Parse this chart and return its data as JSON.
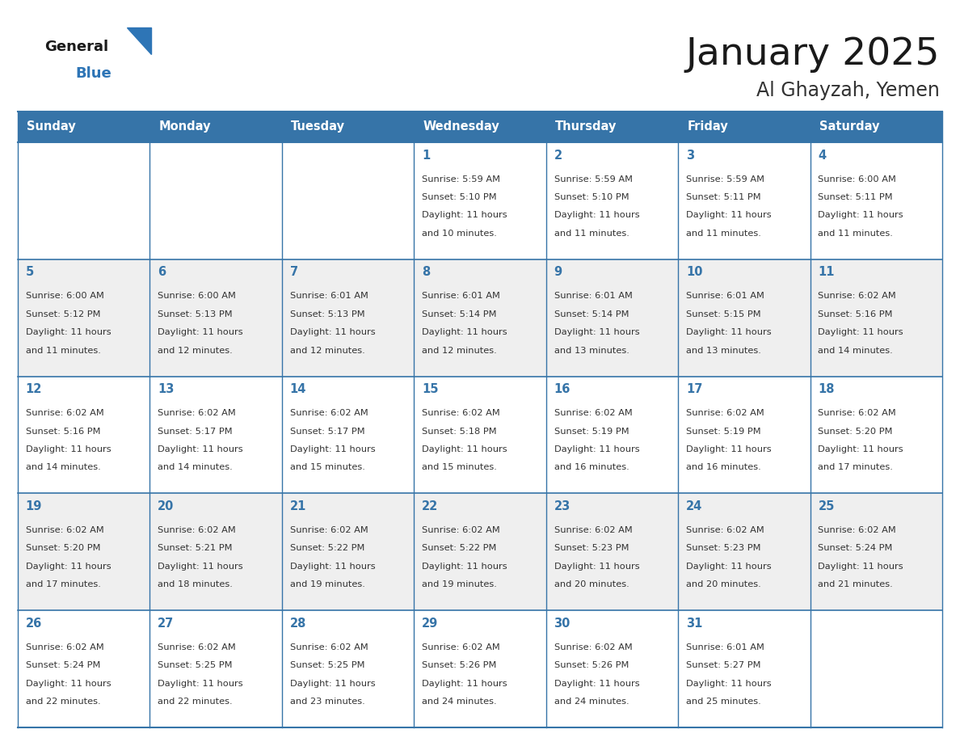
{
  "title": "January 2025",
  "subtitle": "Al Ghayzah, Yemen",
  "days_of_week": [
    "Sunday",
    "Monday",
    "Tuesday",
    "Wednesday",
    "Thursday",
    "Friday",
    "Saturday"
  ],
  "header_bg": "#3674a8",
  "header_text": "#FFFFFF",
  "cell_bg_even": "#FFFFFF",
  "cell_bg_odd": "#EFEFEF",
  "border_color": "#3674a8",
  "day_num_color": "#3674a8",
  "cell_text_color": "#333333",
  "title_color": "#1a1a1a",
  "subtitle_color": "#333333",
  "logo_general_color": "#1a1a1a",
  "logo_blue_color": "#2E75B6",
  "fig_width": 11.88,
  "fig_height": 9.18,
  "calendar_data": [
    [
      {
        "day": null,
        "sunrise": null,
        "sunset": null,
        "daylight_hours": null,
        "daylight_minutes": null
      },
      {
        "day": null,
        "sunrise": null,
        "sunset": null,
        "daylight_hours": null,
        "daylight_minutes": null
      },
      {
        "day": null,
        "sunrise": null,
        "sunset": null,
        "daylight_hours": null,
        "daylight_minutes": null
      },
      {
        "day": 1,
        "sunrise": "5:59 AM",
        "sunset": "5:10 PM",
        "daylight_hours": 11,
        "daylight_minutes": 10
      },
      {
        "day": 2,
        "sunrise": "5:59 AM",
        "sunset": "5:10 PM",
        "daylight_hours": 11,
        "daylight_minutes": 11
      },
      {
        "day": 3,
        "sunrise": "5:59 AM",
        "sunset": "5:11 PM",
        "daylight_hours": 11,
        "daylight_minutes": 11
      },
      {
        "day": 4,
        "sunrise": "6:00 AM",
        "sunset": "5:11 PM",
        "daylight_hours": 11,
        "daylight_minutes": 11
      }
    ],
    [
      {
        "day": 5,
        "sunrise": "6:00 AM",
        "sunset": "5:12 PM",
        "daylight_hours": 11,
        "daylight_minutes": 11
      },
      {
        "day": 6,
        "sunrise": "6:00 AM",
        "sunset": "5:13 PM",
        "daylight_hours": 11,
        "daylight_minutes": 12
      },
      {
        "day": 7,
        "sunrise": "6:01 AM",
        "sunset": "5:13 PM",
        "daylight_hours": 11,
        "daylight_minutes": 12
      },
      {
        "day": 8,
        "sunrise": "6:01 AM",
        "sunset": "5:14 PM",
        "daylight_hours": 11,
        "daylight_minutes": 12
      },
      {
        "day": 9,
        "sunrise": "6:01 AM",
        "sunset": "5:14 PM",
        "daylight_hours": 11,
        "daylight_minutes": 13
      },
      {
        "day": 10,
        "sunrise": "6:01 AM",
        "sunset": "5:15 PM",
        "daylight_hours": 11,
        "daylight_minutes": 13
      },
      {
        "day": 11,
        "sunrise": "6:02 AM",
        "sunset": "5:16 PM",
        "daylight_hours": 11,
        "daylight_minutes": 14
      }
    ],
    [
      {
        "day": 12,
        "sunrise": "6:02 AM",
        "sunset": "5:16 PM",
        "daylight_hours": 11,
        "daylight_minutes": 14
      },
      {
        "day": 13,
        "sunrise": "6:02 AM",
        "sunset": "5:17 PM",
        "daylight_hours": 11,
        "daylight_minutes": 14
      },
      {
        "day": 14,
        "sunrise": "6:02 AM",
        "sunset": "5:17 PM",
        "daylight_hours": 11,
        "daylight_minutes": 15
      },
      {
        "day": 15,
        "sunrise": "6:02 AM",
        "sunset": "5:18 PM",
        "daylight_hours": 11,
        "daylight_minutes": 15
      },
      {
        "day": 16,
        "sunrise": "6:02 AM",
        "sunset": "5:19 PM",
        "daylight_hours": 11,
        "daylight_minutes": 16
      },
      {
        "day": 17,
        "sunrise": "6:02 AM",
        "sunset": "5:19 PM",
        "daylight_hours": 11,
        "daylight_minutes": 16
      },
      {
        "day": 18,
        "sunrise": "6:02 AM",
        "sunset": "5:20 PM",
        "daylight_hours": 11,
        "daylight_minutes": 17
      }
    ],
    [
      {
        "day": 19,
        "sunrise": "6:02 AM",
        "sunset": "5:20 PM",
        "daylight_hours": 11,
        "daylight_minutes": 17
      },
      {
        "day": 20,
        "sunrise": "6:02 AM",
        "sunset": "5:21 PM",
        "daylight_hours": 11,
        "daylight_minutes": 18
      },
      {
        "day": 21,
        "sunrise": "6:02 AM",
        "sunset": "5:22 PM",
        "daylight_hours": 11,
        "daylight_minutes": 19
      },
      {
        "day": 22,
        "sunrise": "6:02 AM",
        "sunset": "5:22 PM",
        "daylight_hours": 11,
        "daylight_minutes": 19
      },
      {
        "day": 23,
        "sunrise": "6:02 AM",
        "sunset": "5:23 PM",
        "daylight_hours": 11,
        "daylight_minutes": 20
      },
      {
        "day": 24,
        "sunrise": "6:02 AM",
        "sunset": "5:23 PM",
        "daylight_hours": 11,
        "daylight_minutes": 20
      },
      {
        "day": 25,
        "sunrise": "6:02 AM",
        "sunset": "5:24 PM",
        "daylight_hours": 11,
        "daylight_minutes": 21
      }
    ],
    [
      {
        "day": 26,
        "sunrise": "6:02 AM",
        "sunset": "5:24 PM",
        "daylight_hours": 11,
        "daylight_minutes": 22
      },
      {
        "day": 27,
        "sunrise": "6:02 AM",
        "sunset": "5:25 PM",
        "daylight_hours": 11,
        "daylight_minutes": 22
      },
      {
        "day": 28,
        "sunrise": "6:02 AM",
        "sunset": "5:25 PM",
        "daylight_hours": 11,
        "daylight_minutes": 23
      },
      {
        "day": 29,
        "sunrise": "6:02 AM",
        "sunset": "5:26 PM",
        "daylight_hours": 11,
        "daylight_minutes": 24
      },
      {
        "day": 30,
        "sunrise": "6:02 AM",
        "sunset": "5:26 PM",
        "daylight_hours": 11,
        "daylight_minutes": 24
      },
      {
        "day": 31,
        "sunrise": "6:01 AM",
        "sunset": "5:27 PM",
        "daylight_hours": 11,
        "daylight_minutes": 25
      },
      {
        "day": null,
        "sunrise": null,
        "sunset": null,
        "daylight_hours": null,
        "daylight_minutes": null
      }
    ]
  ]
}
